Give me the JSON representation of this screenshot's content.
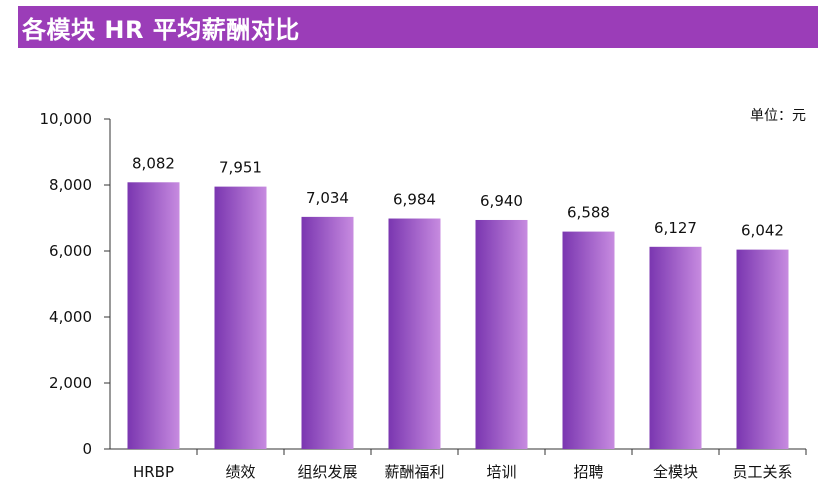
{
  "header": {
    "title": "各模块 HR 平均薪酬对比",
    "background": "#9b3db8"
  },
  "unit_label": "单位：元",
  "colors": {
    "bar_dark": "#7a36b0",
    "bar_light": "#c78be0",
    "axis": "#333333"
  },
  "chart_data": {
    "type": "bar",
    "title": "各模块 HR 平均薪酬对比",
    "xlabel": "",
    "ylabel": "",
    "ylim": [
      0,
      10000
    ],
    "yticks": [
      0,
      2000,
      4000,
      6000,
      8000,
      10000
    ],
    "ytick_labels": [
      "0",
      "2,000",
      "4,000",
      "6,000",
      "8,000",
      "10,000"
    ],
    "categories": [
      "HRBP",
      "绩效",
      "组织发展",
      "薪酬福利",
      "培训",
      "招聘",
      "全模块",
      "员工关系"
    ],
    "values": [
      8082,
      7951,
      7034,
      6984,
      6940,
      6588,
      6127,
      6042
    ],
    "value_labels": [
      "8,082",
      "7,951",
      "7,034",
      "6,984",
      "6,940",
      "6,588",
      "6,127",
      "6,042"
    ],
    "grid": false,
    "legend": "none"
  }
}
